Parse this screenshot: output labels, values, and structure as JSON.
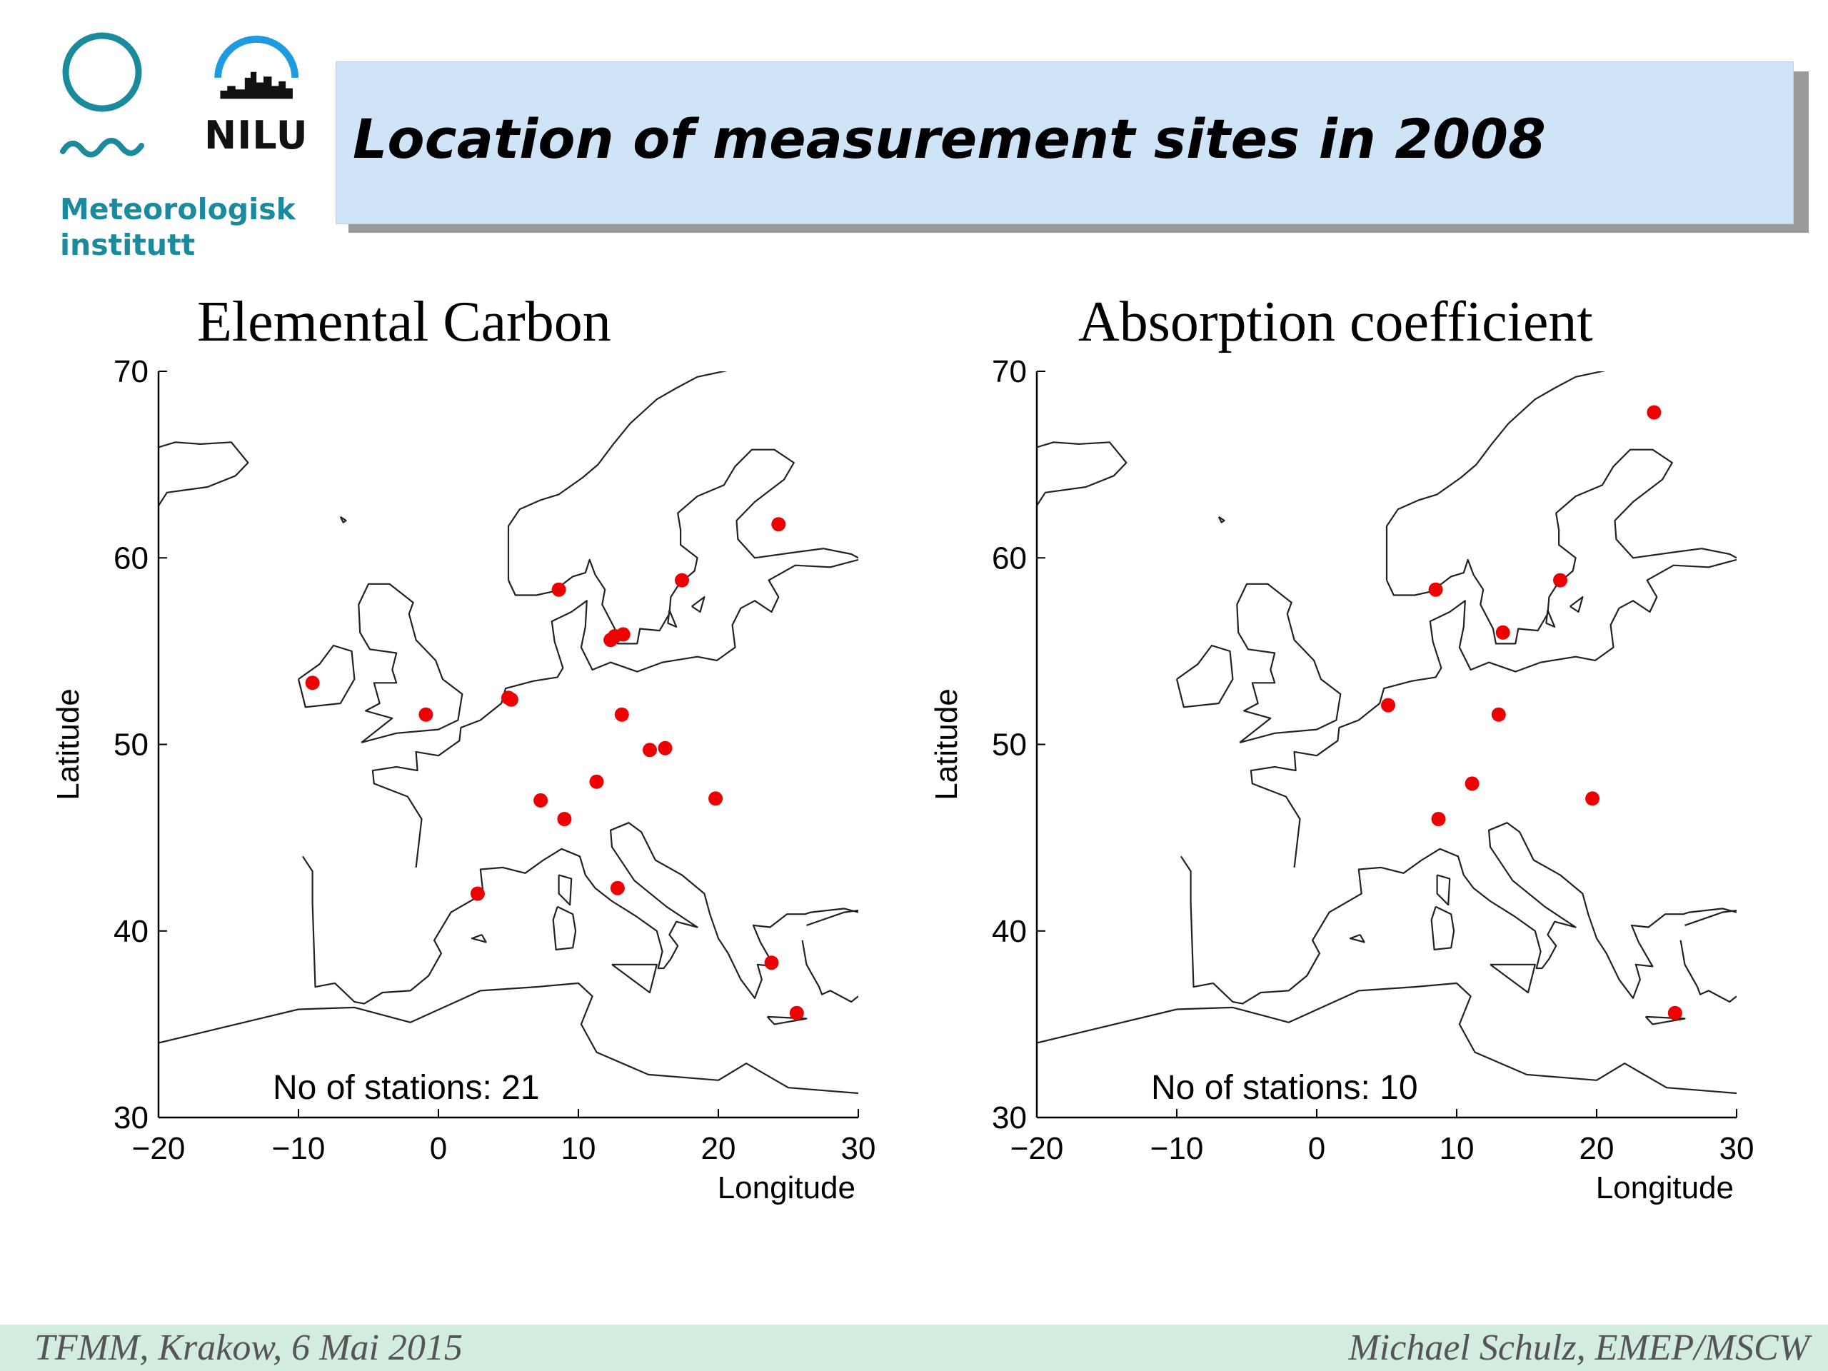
{
  "header": {
    "title": "Location of measurement sites in 2008",
    "logo_met": {
      "name_line1": "Meteorologisk",
      "name_line2": "institutt"
    },
    "logo_nilu": {
      "name": "NILU"
    }
  },
  "footer": {
    "left": "TFMM, Krakow, 6 Mai 2015",
    "right": "Michael Schulz, EMEP/MSCW"
  },
  "colors": {
    "station": "#ee0000",
    "title_bg": "#cfe4f7",
    "footer_bg": "#d3ece0",
    "met_teal": "#1a8a9c",
    "nilu_blue": "#1e9be0"
  },
  "chart_data": [
    {
      "type": "scatter",
      "title": "Elemental Carbon",
      "xlabel": "Longitude",
      "ylabel": "Latitude",
      "xlim": [
        -20,
        30
      ],
      "ylim": [
        30,
        70
      ],
      "xticks": [
        "−20",
        "−10",
        "0",
        "10",
        "20",
        "30"
      ],
      "yticks": [
        "30",
        "40",
        "50",
        "60",
        "70"
      ],
      "annotation": "No of stations: 21",
      "points": [
        {
          "x": -9.0,
          "y": 53.3
        },
        {
          "x": -0.9,
          "y": 51.6
        },
        {
          "x": 5.2,
          "y": 52.4
        },
        {
          "x": 8.6,
          "y": 58.3
        },
        {
          "x": 12.3,
          "y": 55.6
        },
        {
          "x": 13.2,
          "y": 55.9
        },
        {
          "x": 17.4,
          "y": 58.8
        },
        {
          "x": 24.3,
          "y": 61.8
        },
        {
          "x": 13.1,
          "y": 51.6
        },
        {
          "x": 15.1,
          "y": 49.7
        },
        {
          "x": 16.2,
          "y": 49.8
        },
        {
          "x": 11.3,
          "y": 48.0
        },
        {
          "x": 7.3,
          "y": 47.0
        },
        {
          "x": 9.0,
          "y": 46.0
        },
        {
          "x": 19.8,
          "y": 47.1
        },
        {
          "x": 2.8,
          "y": 42.0
        },
        {
          "x": 12.8,
          "y": 42.3
        },
        {
          "x": 23.8,
          "y": 38.3
        },
        {
          "x": 25.6,
          "y": 35.6
        },
        {
          "x": 5.0,
          "y": 52.5
        },
        {
          "x": 12.6,
          "y": 55.8
        }
      ]
    },
    {
      "type": "scatter",
      "title": "Absorption coefficient",
      "xlabel": "Longitude",
      "ylabel": "Latitude",
      "xlim": [
        -20,
        30
      ],
      "ylim": [
        30,
        70
      ],
      "xticks": [
        "−20",
        "−10",
        "0",
        "10",
        "20",
        "30"
      ],
      "yticks": [
        "30",
        "40",
        "50",
        "60",
        "70"
      ],
      "annotation": "No of stations: 10",
      "points": [
        {
          "x": 24.1,
          "y": 67.8
        },
        {
          "x": 8.5,
          "y": 58.3
        },
        {
          "x": 17.4,
          "y": 58.8
        },
        {
          "x": 13.3,
          "y": 56.0
        },
        {
          "x": 5.1,
          "y": 52.1
        },
        {
          "x": 13.0,
          "y": 51.6
        },
        {
          "x": 11.1,
          "y": 47.9
        },
        {
          "x": 8.7,
          "y": 46.0
        },
        {
          "x": 19.7,
          "y": 47.1
        },
        {
          "x": 25.6,
          "y": 35.6
        }
      ]
    }
  ]
}
